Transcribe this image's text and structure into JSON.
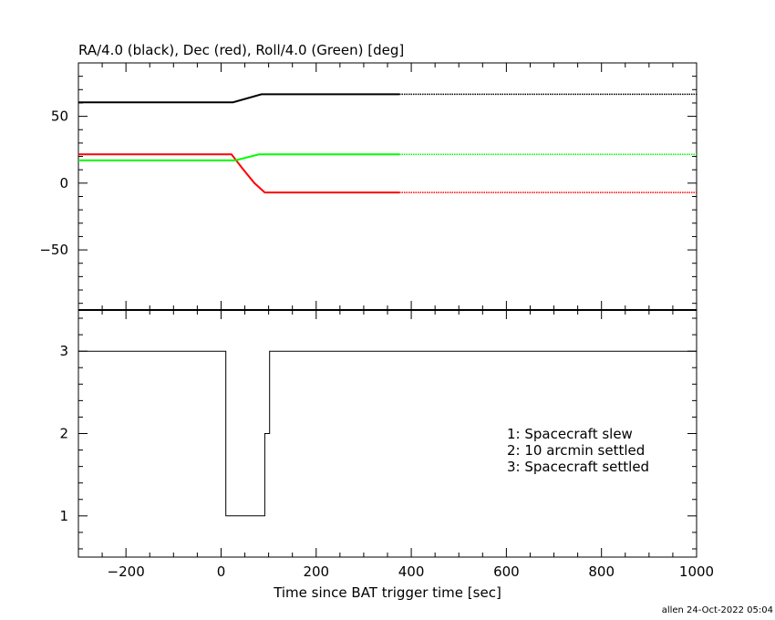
{
  "chart_data": [
    {
      "type": "line",
      "title": "RA/4.0 (black), Dec (red), Roll/4.0 (Green) [deg]",
      "xlim": [
        -300,
        1000
      ],
      "ylim": [
        -95,
        90
      ],
      "yticks": [
        50,
        0,
        -50
      ],
      "ytick_labels": [
        "50",
        "0",
        "−50"
      ],
      "grid": false,
      "series": [
        {
          "color": "#000000",
          "solid_until": 375,
          "x": [
            -300,
            25,
            85,
            375,
            1000
          ],
          "y": [
            60.5,
            60.5,
            66.5,
            66.5,
            66.5
          ]
        },
        {
          "color": "#ff0000",
          "solid_until": 375,
          "x": [
            -300,
            22,
            45,
            70,
            92,
            375,
            1000
          ],
          "y": [
            21.5,
            21.5,
            11,
            0,
            -7,
            -7,
            -7
          ]
        },
        {
          "color": "#00ff00",
          "solid_until": 375,
          "x": [
            -300,
            30,
            80,
            375,
            1000
          ],
          "y": [
            17,
            17,
            21.5,
            21.5,
            21.5
          ]
        }
      ]
    },
    {
      "type": "line",
      "xlabel": "Time since BAT trigger time [sec]",
      "xlim": [
        -300,
        1000
      ],
      "ylim": [
        0.5,
        3.5
      ],
      "yticks": [
        3,
        2,
        1
      ],
      "ytick_labels": [
        "3",
        "2",
        "1"
      ],
      "xticks": [
        -200,
        0,
        200,
        400,
        600,
        800,
        1000
      ],
      "xtick_labels": [
        "−200",
        "0",
        "200",
        "400",
        "600",
        "800",
        "1000"
      ],
      "legend": {
        "placement": "right",
        "entries": [
          "1: Spacecraft slew",
          "2: 10 arcmin settled",
          "3: Spacecraft settled"
        ]
      },
      "series": [
        {
          "color": "#000000",
          "step": true,
          "x": [
            -300,
            10,
            10,
            92,
            92,
            102,
            102,
            1000
          ],
          "y": [
            3,
            3,
            1,
            1,
            2,
            2,
            3,
            3
          ]
        }
      ]
    }
  ],
  "footer": {
    "stamp": "allen 24-Oct-2022 05:04"
  }
}
